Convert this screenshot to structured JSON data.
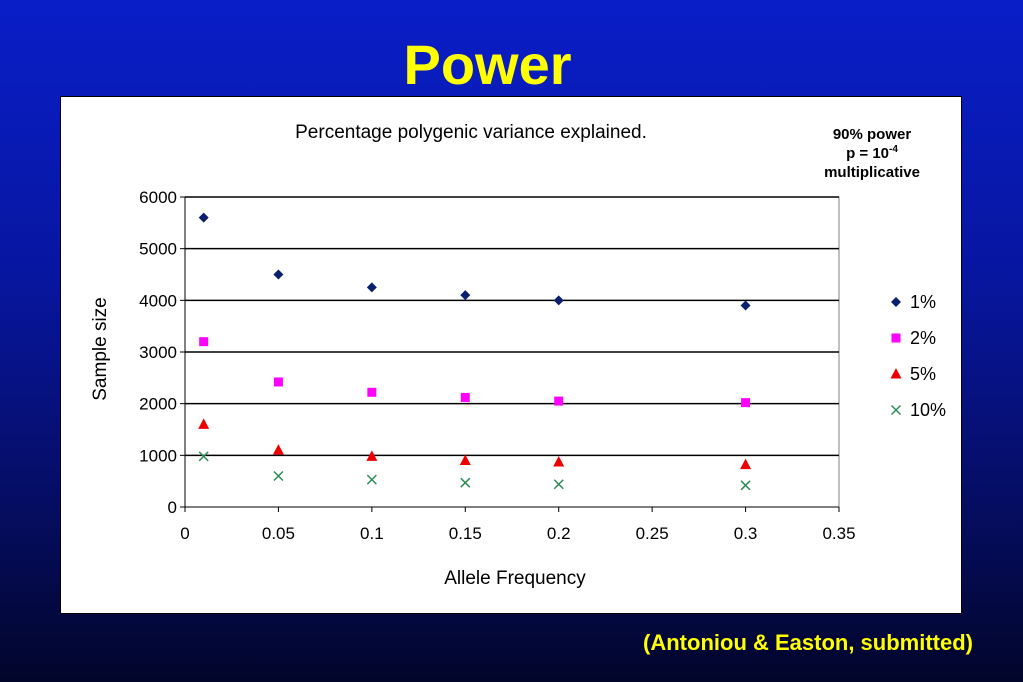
{
  "slide": {
    "title": "Power",
    "citation": "(Antoniou & Easton, submitted)"
  },
  "annotation": {
    "line1": "90% power",
    "p_prefix": "p = 10",
    "p_exponent": "-4",
    "line3": "multiplicative"
  },
  "colors": {
    "background": "#0716a0",
    "title": "#ffff00",
    "series_1pct": "#0a1f6e",
    "series_2pct": "#ff00ff",
    "series_5pct": "#ee0000",
    "series_10pct": "#2e8b57"
  },
  "chart_data": {
    "type": "scatter",
    "title": "Percentage polygenic variance explained.",
    "xlabel": "Allele Frequency",
    "ylabel": "Sample size",
    "xlim": [
      0,
      0.35
    ],
    "ylim": [
      0,
      6000
    ],
    "xticks": [
      "0",
      "0.05",
      "0.1",
      "0.15",
      "0.2",
      "0.25",
      "0.3",
      "0.35"
    ],
    "yticks": [
      "0",
      "1000",
      "2000",
      "3000",
      "4000",
      "5000",
      "6000"
    ],
    "grid": "horizontal",
    "legend_position": "right",
    "x": [
      0.01,
      0.05,
      0.1,
      0.15,
      0.2,
      0.3
    ],
    "series": [
      {
        "name": "1%",
        "marker": "diamond",
        "color": "#0a1f6e",
        "values": [
          5600,
          4500,
          4250,
          4100,
          4000,
          3900
        ]
      },
      {
        "name": "2%",
        "marker": "square",
        "color": "#ff00ff",
        "values": [
          3200,
          2420,
          2220,
          2120,
          2050,
          2020
        ]
      },
      {
        "name": "5%",
        "marker": "triangle",
        "color": "#ee0000",
        "values": [
          1600,
          1100,
          980,
          900,
          870,
          820
        ]
      },
      {
        "name": "10%",
        "marker": "x",
        "color": "#2e8b57",
        "values": [
          980,
          600,
          530,
          470,
          440,
          420
        ]
      }
    ]
  }
}
